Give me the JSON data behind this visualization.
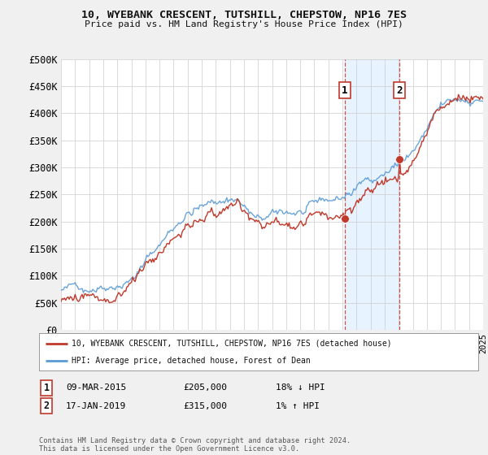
{
  "title": "10, WYEBANK CRESCENT, TUTSHILL, CHEPSTOW, NP16 7ES",
  "subtitle": "Price paid vs. HM Land Registry's House Price Index (HPI)",
  "legend_line1": "10, WYEBANK CRESCENT, TUTSHILL, CHEPSTOW, NP16 7ES (detached house)",
  "legend_line2": "HPI: Average price, detached house, Forest of Dean",
  "sale1_label": "1",
  "sale1_date": "09-MAR-2015",
  "sale1_price": "£205,000",
  "sale1_hpi": "18% ↓ HPI",
  "sale2_label": "2",
  "sale2_date": "17-JAN-2019",
  "sale2_price": "£315,000",
  "sale2_hpi": "1% ↑ HPI",
  "footnote": "Contains HM Land Registry data © Crown copyright and database right 2024.\nThis data is licensed under the Open Government Licence v3.0.",
  "xmin": 1995,
  "xmax": 2025,
  "ymin": 0,
  "ymax": 500000,
  "yticks": [
    0,
    50000,
    100000,
    150000,
    200000,
    250000,
    300000,
    350000,
    400000,
    450000,
    500000
  ],
  "ytick_labels": [
    "£0",
    "£50K",
    "£100K",
    "£150K",
    "£200K",
    "£250K",
    "£300K",
    "£350K",
    "£400K",
    "£450K",
    "£500K"
  ],
  "hpi_color": "#5b9bd5",
  "price_color": "#c0392b",
  "vline_color": "#c0392b",
  "shading_color": "#ddeeff",
  "sale1_x": 2015.18,
  "sale1_y": 205000,
  "sale2_x": 2019.05,
  "sale2_y": 315000,
  "background_color": "#f0f0f0",
  "plot_bg": "#ffffff",
  "grid_color": "#cccccc"
}
